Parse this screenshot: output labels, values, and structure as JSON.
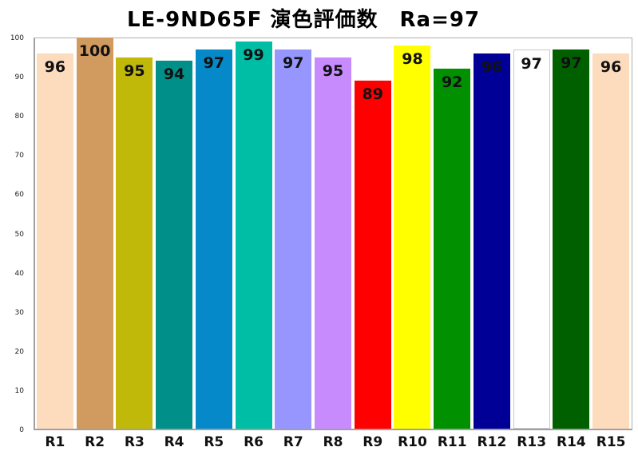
{
  "chart_data": {
    "type": "bar",
    "title": "LE-9ND65F  演色評価数　Ra=97",
    "xlabel": "",
    "ylabel": "",
    "ylim": [
      0,
      100
    ],
    "yticks": [
      0,
      10,
      20,
      30,
      40,
      50,
      60,
      70,
      80,
      90,
      100
    ],
    "grid": false,
    "legend": "none",
    "categories": [
      "R1",
      "R2",
      "R3",
      "R4",
      "R5",
      "R6",
      "R7",
      "R8",
      "R9",
      "R10",
      "R11",
      "R12",
      "R13",
      "R14",
      "R15"
    ],
    "values": [
      96,
      100,
      95,
      94,
      97,
      99,
      97,
      95,
      89,
      98,
      92,
      96,
      97,
      97,
      96
    ],
    "colors": [
      "#FDDCBE",
      "#D19A5E",
      "#C0B90A",
      "#009089",
      "#0689C8",
      "#00BDA6",
      "#9796FE",
      "#C78BFE",
      "#FF0000",
      "#FFFF00",
      "#009000",
      "#000096",
      "#FFFFFF",
      "#006000",
      "#FDDCBE"
    ],
    "data_labels": [
      "96",
      "100",
      "95",
      "94",
      "97",
      "99",
      "97",
      "95",
      "89",
      "98",
      "92",
      "96",
      "97",
      "97",
      "96"
    ]
  }
}
